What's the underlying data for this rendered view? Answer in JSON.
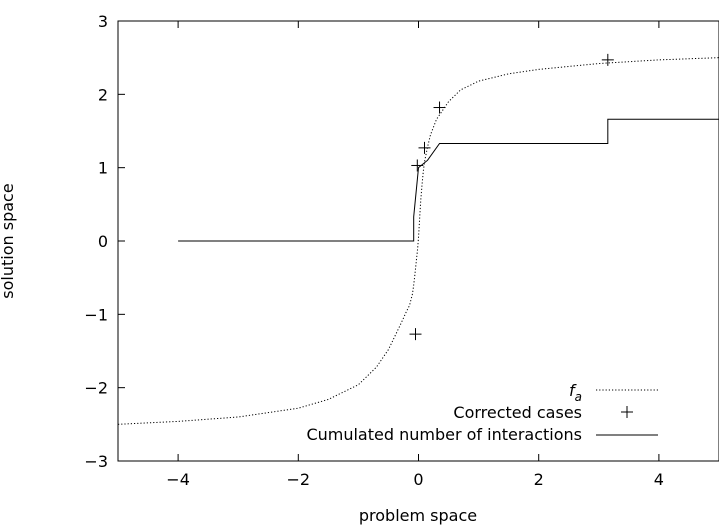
{
  "chart_data": {
    "type": "line",
    "xlabel": "problem space",
    "ylabel": "solution space",
    "xlim": [
      -5,
      5
    ],
    "ylim": [
      -3,
      3
    ],
    "x_ticks": [
      "−4",
      "−2",
      "0",
      "2",
      "4"
    ],
    "x_tick_values": [
      -4,
      -2,
      0,
      2,
      4
    ],
    "y_ticks": [
      "−3",
      "−2",
      "−1",
      "0",
      "1",
      "2",
      "3"
    ],
    "y_tick_values": [
      -3,
      -2,
      -1,
      0,
      1,
      2,
      3
    ],
    "legend_position": "bottom-right",
    "grid": false,
    "series": [
      {
        "name": "f",
        "name_subscript": "a",
        "style": "dotted",
        "color": "#000000",
        "x": [
          -5,
          -4,
          -3,
          -2,
          -1.5,
          -1,
          -0.7,
          -0.5,
          -0.3,
          -0.2,
          -0.15,
          -0.1,
          -0.08,
          -0.06,
          -0.05,
          -0.04,
          -0.03,
          -0.02,
          -0.01,
          0,
          0.01,
          0.02,
          0.03,
          0.04,
          0.05,
          0.06,
          0.08,
          0.1,
          0.15,
          0.2,
          0.3,
          0.5,
          0.7,
          1,
          1.5,
          2,
          3,
          4,
          5
        ],
        "y": [
          -2.5,
          -2.46,
          -2.4,
          -2.28,
          -2.16,
          -1.96,
          -1.72,
          -1.48,
          -1.14,
          -0.96,
          -0.88,
          -0.72,
          -0.6,
          -0.46,
          -0.38,
          -0.3,
          -0.22,
          -0.15,
          -0.06,
          0.05,
          0.18,
          0.32,
          0.46,
          0.58,
          0.68,
          0.78,
          0.95,
          1.08,
          1.28,
          1.45,
          1.66,
          1.9,
          2.06,
          2.18,
          2.28,
          2.34,
          2.42,
          2.47,
          2.5
        ]
      },
      {
        "name": "Corrected cases",
        "style": "points",
        "marker": "+",
        "color": "#000000",
        "x": [
          -0.05,
          -0.02,
          0.1,
          0.35,
          3.15
        ],
        "y": [
          -1.27,
          1.03,
          1.27,
          1.82,
          2.47
        ]
      },
      {
        "name": "Cumulated number of interactions",
        "style": "solid",
        "color": "#000000",
        "x": [
          -4,
          -0.08,
          -0.08,
          0,
          0.15,
          0.35,
          3.15,
          3.15,
          5
        ],
        "y": [
          0,
          0,
          0.33,
          1,
          1.1,
          1.33,
          1.33,
          1.66,
          1.66
        ]
      }
    ]
  }
}
